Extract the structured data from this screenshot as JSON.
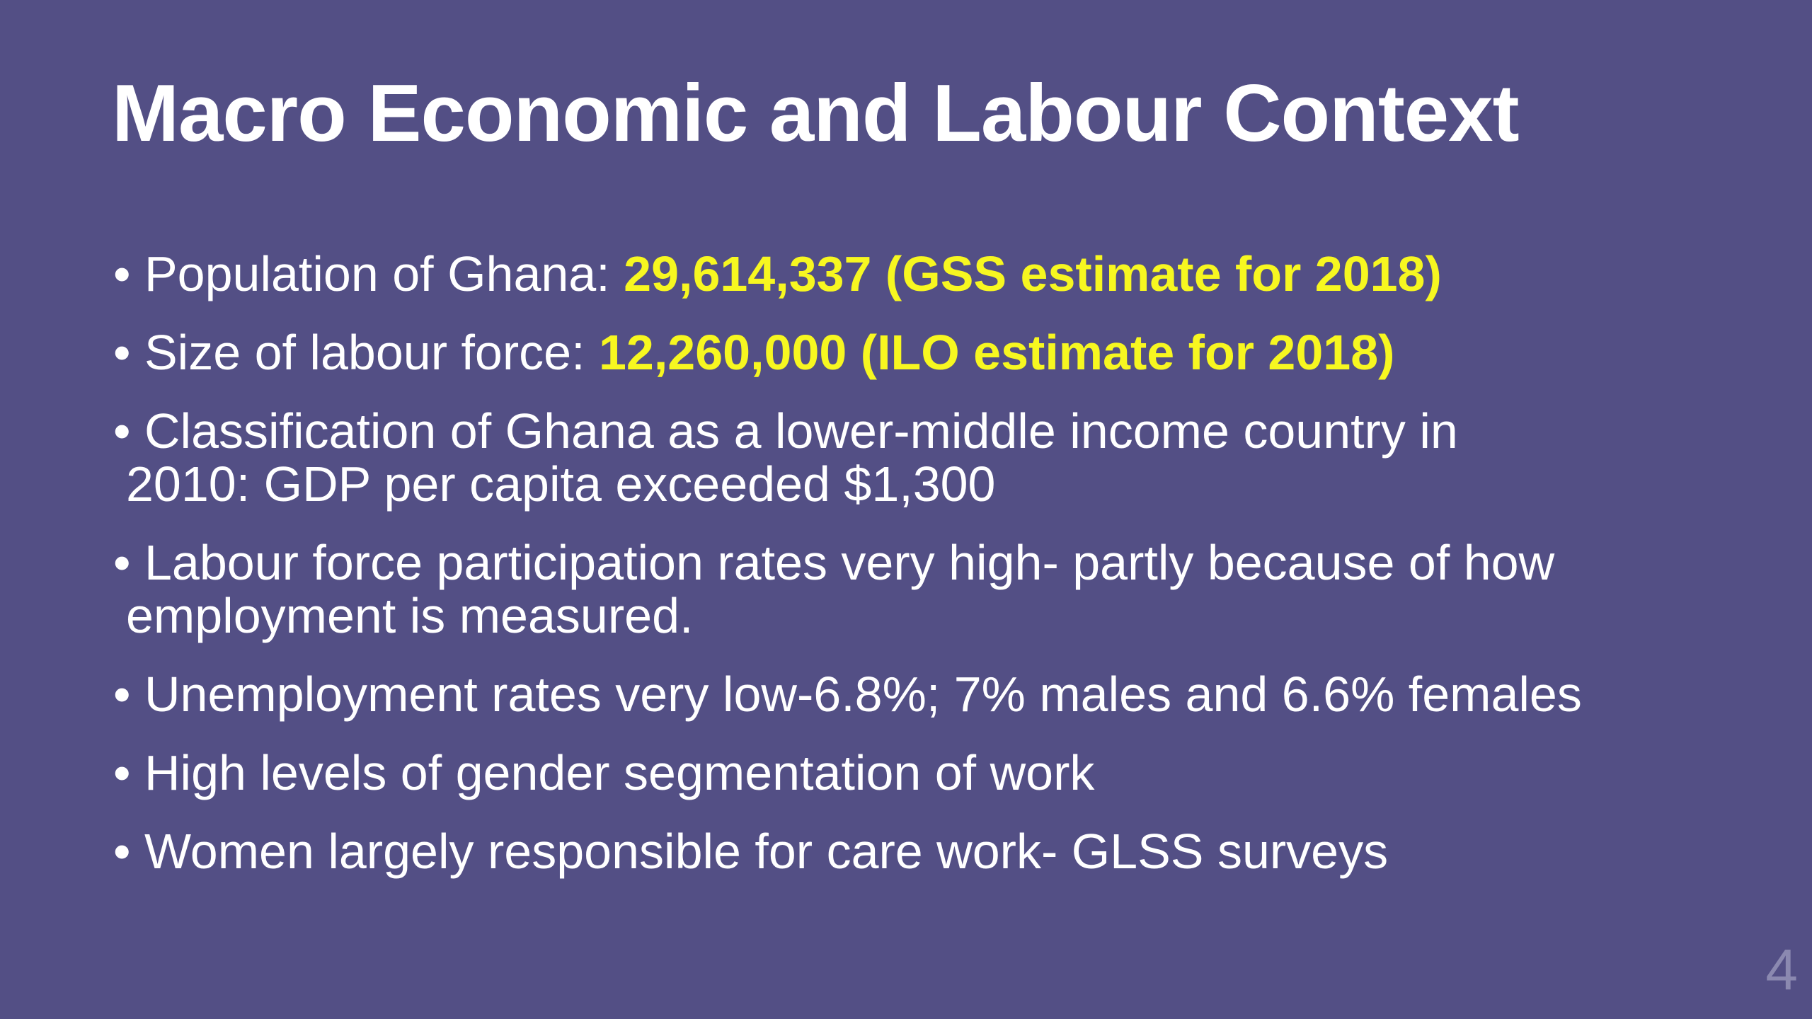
{
  "title": "Macro Economic and Labour Context",
  "bullets": [
    {
      "lines": [
        "Population of Ghana: "
      ],
      "highlight": "29,614,337 (GSS estimate for 2018)"
    },
    {
      "lines": [
        "Size of labour force: "
      ],
      "highlight": "12,260,000 (ILO estimate for 2018)"
    },
    {
      "lines": [
        "Classification of Ghana as a lower-middle income country in",
        "2010: GDP per capita exceeded $1,300"
      ]
    },
    {
      "lines": [
        "Labour force participation rates very high- partly because of how",
        "employment is measured."
      ]
    },
    {
      "lines": [
        "Unemployment rates very low-6.8%; 7% males and 6.6% females"
      ]
    },
    {
      "lines": [
        "High levels of gender segmentation of work"
      ]
    },
    {
      "lines": [
        "Women largely responsible for care work- GLSS surveys"
      ]
    }
  ],
  "page_number": "4"
}
